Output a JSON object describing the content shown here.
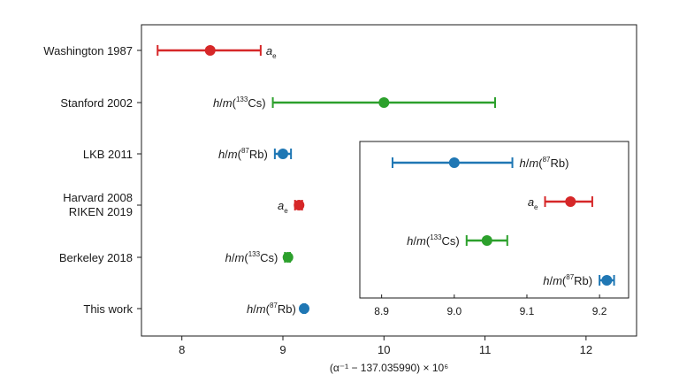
{
  "chart_data": {
    "type": "scatter",
    "variant": "forest-plot-with-error-bars",
    "title": "",
    "xlabel": "(α⁻¹ − 137.035990) × 10⁶",
    "ylabel": "",
    "xlim": [
      7.6,
      12.5
    ],
    "xticks": [
      "8",
      "9",
      "10",
      "11",
      "12"
    ],
    "grid": false,
    "legend": "none",
    "points": [
      {
        "label": "Washington 1987",
        "method": "a",
        "method_sub": "e",
        "method_sup": "",
        "x": 8.28,
        "err_low": 7.76,
        "err_high": 8.78,
        "color": "#d62728"
      },
      {
        "label": "Stanford 2002",
        "method": "h/m(",
        "method_sup": "133",
        "method_tail": "Cs)",
        "x": 10.0,
        "err_low": 8.9,
        "err_high": 11.1,
        "color": "#2ca02c"
      },
      {
        "label": "LKB 2011",
        "method": "h/m(",
        "method_sup": "87",
        "method_tail": "Rb)",
        "x": 9.0,
        "err_low": 8.92,
        "err_high": 9.08,
        "color": "#1f77b4"
      },
      {
        "label_lines": [
          "Harvard 2008",
          "RIKEN 2019"
        ],
        "method": "a",
        "method_sub": "e",
        "method_sup": "",
        "x": 9.16,
        "err_low": 9.12,
        "err_high": 9.19,
        "color": "#d62728"
      },
      {
        "label": "Berkeley 2018",
        "method": "h/m(",
        "method_sup": "133",
        "method_tail": "Cs)",
        "x": 9.05,
        "err_low": 9.02,
        "err_high": 9.07,
        "color": "#2ca02c"
      },
      {
        "label": "This work",
        "method": "h/m(",
        "method_sup": "87",
        "method_tail": "Rb)",
        "x": 9.21,
        "err_low": 9.2,
        "err_high": 9.22,
        "color": "#1f77b4"
      }
    ],
    "inset": {
      "xlim": [
        8.87,
        9.24
      ],
      "xticks": [
        "8.9",
        "9.0",
        "9.1",
        "9.2"
      ],
      "points": [
        {
          "method": "h/m(",
          "method_sup": "87",
          "method_tail": "Rb)",
          "x": 9.0,
          "err_low": 8.915,
          "err_high": 9.08,
          "color": "#1f77b4"
        },
        {
          "method": "a",
          "method_sub": "e",
          "method_sup": "",
          "x": 9.16,
          "err_low": 9.125,
          "err_high": 9.19,
          "color": "#d62728"
        },
        {
          "method": "h/m(",
          "method_sup": "133",
          "method_tail": "Cs)",
          "x": 9.045,
          "err_low": 9.017,
          "err_high": 9.073,
          "color": "#2ca02c"
        },
        {
          "method": "h/m(",
          "method_sup": "87",
          "method_tail": "Rb)",
          "x": 9.21,
          "err_low": 9.2,
          "err_high": 9.22,
          "color": "#1f77b4"
        }
      ]
    }
  }
}
